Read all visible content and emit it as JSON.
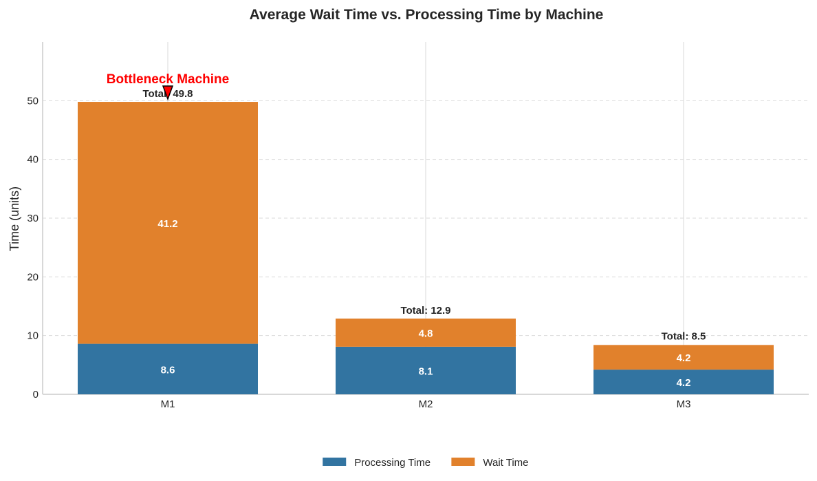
{
  "chart_data": {
    "type": "bar",
    "stacked": true,
    "title": "Average Wait Time vs. Processing Time by Machine",
    "xlabel": "",
    "ylabel": "Time (units)",
    "ylim": [
      0,
      60
    ],
    "yticks": [
      0,
      10,
      20,
      30,
      40,
      50
    ],
    "grid": "y-dashed",
    "categories": [
      "M1",
      "M2",
      "M3"
    ],
    "series": [
      {
        "name": "Processing Time",
        "values": [
          8.6,
          8.1,
          4.2
        ],
        "labels": [
          "8.6",
          "8.1",
          "4.2"
        ],
        "color": "#3274a1"
      },
      {
        "name": "Wait Time",
        "values": [
          41.2,
          4.8,
          4.2
        ],
        "labels": [
          "41.2",
          "4.8",
          "4.2"
        ],
        "color": "#e1812c"
      }
    ],
    "totals": [
      49.8,
      12.9,
      8.5
    ],
    "total_labels": [
      "Total: 49.8",
      "Total: 12.9",
      "Total: 8.5"
    ],
    "annotation": {
      "text": "Bottleneck Machine",
      "category": "M1",
      "color": "#ff0000"
    },
    "legend": {
      "placement": "bottom-center",
      "ncol": 2
    }
  }
}
